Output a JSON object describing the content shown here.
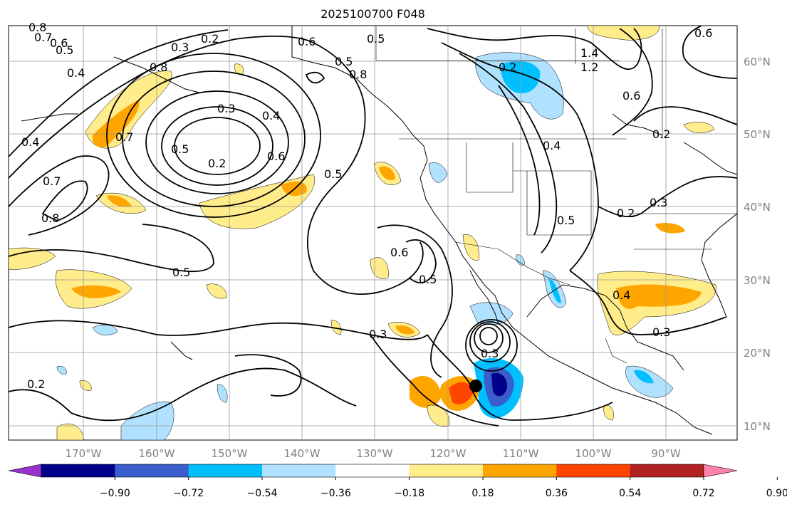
{
  "title": "2025100700 F048",
  "map": {
    "lon_labels": [
      "170°W",
      "160°W",
      "150°W",
      "140°W",
      "130°W",
      "120°W",
      "110°W",
      "100°W",
      "90°W"
    ],
    "lat_labels": [
      "60°N",
      "50°N",
      "40°N",
      "30°N",
      "20°N",
      "10°N"
    ],
    "contour_labels": [
      {
        "text": "0.8"
      },
      {
        "text": "0.7"
      },
      {
        "text": "0.6"
      },
      {
        "text": "0.5"
      },
      {
        "text": "0.4"
      },
      {
        "text": "0.3"
      },
      {
        "text": "0.2"
      },
      {
        "text": "0.8"
      },
      {
        "text": "0.7"
      },
      {
        "text": "0.6"
      },
      {
        "text": "0.5"
      },
      {
        "text": "0.4"
      },
      {
        "text": "0.3"
      },
      {
        "text": "0.2"
      },
      {
        "text": "0.4"
      },
      {
        "text": "0.7"
      },
      {
        "text": "0.8"
      },
      {
        "text": "0.5"
      },
      {
        "text": "0.6"
      },
      {
        "text": "0.5"
      },
      {
        "text": "1.4"
      },
      {
        "text": "1.2"
      },
      {
        "text": "0.2"
      },
      {
        "text": "0.2"
      },
      {
        "text": "0.4"
      },
      {
        "text": "0.5"
      },
      {
        "text": "0.3"
      },
      {
        "text": "0.2"
      },
      {
        "text": "0.3"
      },
      {
        "text": "0.5"
      },
      {
        "text": "0.6"
      },
      {
        "text": "0.3"
      },
      {
        "text": "0.2"
      },
      {
        "text": "0.3"
      },
      {
        "text": "0.5"
      },
      {
        "text": "0.4"
      },
      {
        "text": "0.6"
      },
      {
        "text": "0.6"
      },
      {
        "text": "0.5"
      },
      {
        "text": "0.8"
      }
    ]
  },
  "colorbar": {
    "ticks": [
      "−0.90",
      "−0.72",
      "−0.54",
      "−0.36",
      "−0.18",
      "0.18",
      "0.36",
      "0.54",
      "0.72",
      "0.90"
    ],
    "colors": [
      "#9932cc",
      "#00008b",
      "#3a5fcd",
      "#00bfff",
      "#b0e2ff",
      "#ffffff",
      "#ffec8b",
      "#ffa500",
      "#ff4500",
      "#b22222",
      "#ff82ab"
    ]
  }
}
